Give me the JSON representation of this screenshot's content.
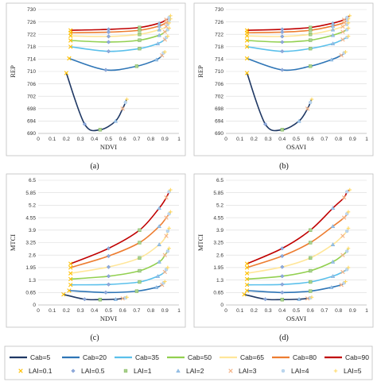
{
  "figure": {
    "panel_labels": [
      "(a)",
      "(b)",
      "(c)",
      "(d)"
    ]
  },
  "legend": {
    "lines": [
      {
        "label": "Cab=5",
        "color": "#1f3864"
      },
      {
        "label": "Cab=20",
        "color": "#2e75b6"
      },
      {
        "label": "Cab=35",
        "color": "#5bc0eb"
      },
      {
        "label": "Cab=50",
        "color": "#92d050"
      },
      {
        "label": "Cab=65",
        "color": "#ffe699"
      },
      {
        "label": "Cab=80",
        "color": "#ed7d31"
      },
      {
        "label": "Cab=90",
        "color": "#c00000"
      }
    ],
    "markers": [
      {
        "label": "LAI=0.1",
        "symbol": "x",
        "color": "#ffc000"
      },
      {
        "label": "LAI=0.5",
        "symbol": "diamond",
        "color": "#8faadc"
      },
      {
        "label": "LAI=1",
        "symbol": "square",
        "color": "#a9d18e"
      },
      {
        "label": "LAI=2",
        "symbol": "triangle",
        "color": "#9dc3e6"
      },
      {
        "label": "LAI=3",
        "symbol": "x",
        "color": "#f4b183"
      },
      {
        "label": "LAI=4",
        "symbol": "circle",
        "color": "#bdd7ee"
      },
      {
        "label": "LAI=5",
        "symbol": "plus",
        "color": "#ffd966"
      }
    ]
  },
  "chart_data": [
    {
      "type": "line",
      "panel": "(a)",
      "xlabel": "NDVI",
      "ylabel": "REP",
      "xlim": [
        0,
        1
      ],
      "ylim": [
        690,
        730
      ],
      "xticks": [
        "0",
        "0.1",
        "0.2",
        "0.3",
        "0.4",
        "0.5",
        "0.6",
        "0.7",
        "0.8",
        "0.9",
        "1"
      ],
      "yticks": [
        "690",
        "694",
        "698",
        "702",
        "706",
        "710",
        "714",
        "718",
        "722",
        "726",
        "730"
      ],
      "grid": true,
      "lai_levels": [
        0.1,
        0.5,
        1,
        2,
        3,
        4,
        5
      ],
      "series": [
        {
          "name": "Cab=5",
          "x": [
            0.2,
            0.33,
            0.44,
            0.55,
            0.6,
            0.62,
            0.63
          ],
          "y": [
            709.5,
            693,
            691.2,
            694,
            698,
            700,
            701
          ]
        },
        {
          "name": "Cab=20",
          "x": [
            0.22,
            0.48,
            0.7,
            0.84,
            0.88,
            0.89,
            0.9
          ],
          "y": [
            714.2,
            710.5,
            711.7,
            713.8,
            715.2,
            716,
            716.3
          ]
        },
        {
          "name": "Cab=35",
          "x": [
            0.23,
            0.5,
            0.72,
            0.85,
            0.9,
            0.91,
            0.92
          ],
          "y": [
            718,
            716.5,
            717.4,
            719,
            720.3,
            721,
            721.4
          ]
        },
        {
          "name": "Cab=50",
          "x": [
            0.23,
            0.5,
            0.72,
            0.86,
            0.9,
            0.92,
            0.93
          ],
          "y": [
            720,
            719.5,
            720.1,
            721.7,
            722.8,
            723.5,
            724
          ]
        },
        {
          "name": "Cab=65",
          "x": [
            0.23,
            0.5,
            0.72,
            0.86,
            0.91,
            0.92,
            0.93
          ],
          "y": [
            721.5,
            721.3,
            722,
            723.5,
            724.5,
            725.2,
            725.7
          ]
        },
        {
          "name": "Cab=80",
          "x": [
            0.23,
            0.5,
            0.72,
            0.86,
            0.91,
            0.93,
            0.94
          ],
          "y": [
            722.5,
            722.7,
            723.3,
            724.7,
            725.8,
            726.5,
            727
          ]
        },
        {
          "name": "Cab=90",
          "x": [
            0.23,
            0.5,
            0.72,
            0.86,
            0.91,
            0.93,
            0.94
          ],
          "y": [
            723.3,
            723.6,
            724.2,
            725.6,
            726.7,
            727.4,
            728
          ]
        }
      ]
    },
    {
      "type": "line",
      "panel": "(b)",
      "xlabel": "OSAVI",
      "ylabel": "REP",
      "xlim": [
        0,
        1
      ],
      "ylim": [
        690,
        730
      ],
      "xticks": [
        "0",
        "0.1",
        "0.2",
        "0.3",
        "0.4",
        "0.5",
        "0.6",
        "0.7",
        "0.8",
        "0.9",
        "1"
      ],
      "yticks": [
        "690",
        "694",
        "698",
        "702",
        "706",
        "710",
        "714",
        "718",
        "722",
        "726",
        "730"
      ],
      "grid": true,
      "lai_levels": [
        0.1,
        0.5,
        1,
        2,
        3,
        4,
        5
      ],
      "series": [
        {
          "name": "Cab=5",
          "x": [
            0.15,
            0.28,
            0.4,
            0.52,
            0.58,
            0.6,
            0.61
          ],
          "y": [
            709.5,
            693,
            691.2,
            694,
            698,
            700,
            701
          ]
        },
        {
          "name": "Cab=20",
          "x": [
            0.15,
            0.4,
            0.6,
            0.75,
            0.82,
            0.84,
            0.85
          ],
          "y": [
            714.2,
            710.5,
            711.7,
            713.8,
            715.2,
            716,
            716.3
          ]
        },
        {
          "name": "Cab=35",
          "x": [
            0.15,
            0.4,
            0.6,
            0.76,
            0.83,
            0.86,
            0.87
          ],
          "y": [
            718,
            716.5,
            717.4,
            719,
            720.3,
            721,
            721.4
          ]
        },
        {
          "name": "Cab=50",
          "x": [
            0.15,
            0.4,
            0.6,
            0.76,
            0.83,
            0.86,
            0.87
          ],
          "y": [
            720,
            719.5,
            720.1,
            721.7,
            722.8,
            723.5,
            724
          ]
        },
        {
          "name": "Cab=65",
          "x": [
            0.15,
            0.4,
            0.6,
            0.76,
            0.83,
            0.86,
            0.87
          ],
          "y": [
            721.5,
            721.3,
            722,
            723.5,
            724.5,
            725.2,
            725.7
          ]
        },
        {
          "name": "Cab=80",
          "x": [
            0.15,
            0.4,
            0.6,
            0.76,
            0.84,
            0.86,
            0.87
          ],
          "y": [
            722.5,
            722.7,
            723.3,
            724.7,
            725.8,
            726.5,
            727
          ]
        },
        {
          "name": "Cab=90",
          "x": [
            0.15,
            0.4,
            0.6,
            0.76,
            0.84,
            0.86,
            0.88
          ],
          "y": [
            723.3,
            723.6,
            724.2,
            725.6,
            726.7,
            727.4,
            728
          ]
        }
      ]
    },
    {
      "type": "line",
      "panel": "(c)",
      "xlabel": "NDVI",
      "ylabel": "MTCI",
      "xlim": [
        0,
        1
      ],
      "ylim": [
        0,
        6.5
      ],
      "xticks": [
        "0",
        "0.1",
        "0.2",
        "0.3",
        "0.4",
        "0.5",
        "0.6",
        "0.7",
        "0.8",
        "0.9",
        "1"
      ],
      "yticks": [
        "0",
        "0.65",
        "1.3",
        "1.95",
        "2.6",
        "3.25",
        "3.9",
        "4.55",
        "5.2",
        "5.85",
        "6.5"
      ],
      "grid": true,
      "lai_levels": [
        0.1,
        0.5,
        1,
        2,
        3,
        4,
        5
      ],
      "series": [
        {
          "name": "Cab=5",
          "x": [
            0.18,
            0.33,
            0.44,
            0.55,
            0.6,
            0.62,
            0.63
          ],
          "y": [
            0.55,
            0.3,
            0.28,
            0.3,
            0.34,
            0.37,
            0.4
          ]
        },
        {
          "name": "Cab=20",
          "x": [
            0.22,
            0.48,
            0.7,
            0.84,
            0.88,
            0.89,
            0.9
          ],
          "y": [
            0.75,
            0.65,
            0.72,
            0.92,
            1.05,
            1.15,
            1.22
          ]
        },
        {
          "name": "Cab=35",
          "x": [
            0.23,
            0.5,
            0.72,
            0.85,
            0.9,
            0.91,
            0.92
          ],
          "y": [
            1.05,
            1.07,
            1.2,
            1.5,
            1.72,
            1.85,
            1.95
          ]
        },
        {
          "name": "Cab=50",
          "x": [
            0.23,
            0.5,
            0.72,
            0.86,
            0.9,
            0.92,
            0.93
          ],
          "y": [
            1.35,
            1.5,
            1.78,
            2.25,
            2.6,
            2.8,
            2.95
          ]
        },
        {
          "name": "Cab=65",
          "x": [
            0.23,
            0.5,
            0.72,
            0.86,
            0.91,
            0.92,
            0.93
          ],
          "y": [
            1.65,
            1.98,
            2.45,
            3.15,
            3.6,
            3.85,
            4.0
          ]
        },
        {
          "name": "Cab=80",
          "x": [
            0.23,
            0.5,
            0.72,
            0.86,
            0.91,
            0.93,
            0.94
          ],
          "y": [
            1.95,
            2.55,
            3.25,
            4.1,
            4.55,
            4.75,
            4.85
          ]
        },
        {
          "name": "Cab=90",
          "x": [
            0.23,
            0.5,
            0.72,
            0.86,
            0.91,
            0.93,
            0.94
          ],
          "y": [
            2.15,
            2.95,
            3.9,
            5.05,
            5.6,
            5.9,
            6.0
          ]
        }
      ]
    },
    {
      "type": "line",
      "panel": "(d)",
      "xlabel": "OSAVI",
      "ylabel": "MTCI",
      "xlim": [
        0,
        1
      ],
      "ylim": [
        0,
        6.5
      ],
      "xticks": [
        "0",
        "0.1",
        "0.2",
        "0.3",
        "0.4",
        "0.5",
        "0.6",
        "0.7",
        "0.8",
        "0.9",
        "1"
      ],
      "yticks": [
        "0",
        "0.65",
        "1.3",
        "1.95",
        "2.6",
        "3.25",
        "3.9",
        "4.55",
        "5.2",
        "5.85",
        "6.5"
      ],
      "grid": true,
      "lai_levels": [
        0.1,
        0.5,
        1,
        2,
        3,
        4,
        5
      ],
      "series": [
        {
          "name": "Cab=5",
          "x": [
            0.13,
            0.28,
            0.4,
            0.52,
            0.58,
            0.6,
            0.61
          ],
          "y": [
            0.55,
            0.3,
            0.28,
            0.3,
            0.34,
            0.37,
            0.4
          ]
        },
        {
          "name": "Cab=20",
          "x": [
            0.15,
            0.4,
            0.6,
            0.75,
            0.82,
            0.84,
            0.85
          ],
          "y": [
            0.75,
            0.65,
            0.72,
            0.92,
            1.05,
            1.15,
            1.22
          ]
        },
        {
          "name": "Cab=35",
          "x": [
            0.15,
            0.4,
            0.6,
            0.76,
            0.83,
            0.86,
            0.87
          ],
          "y": [
            1.05,
            1.07,
            1.2,
            1.5,
            1.72,
            1.85,
            1.95
          ]
        },
        {
          "name": "Cab=50",
          "x": [
            0.15,
            0.4,
            0.6,
            0.76,
            0.83,
            0.86,
            0.87
          ],
          "y": [
            1.35,
            1.5,
            1.78,
            2.25,
            2.6,
            2.8,
            2.95
          ]
        },
        {
          "name": "Cab=65",
          "x": [
            0.15,
            0.4,
            0.6,
            0.76,
            0.83,
            0.86,
            0.87
          ],
          "y": [
            1.65,
            1.98,
            2.45,
            3.15,
            3.6,
            3.85,
            4.0
          ]
        },
        {
          "name": "Cab=80",
          "x": [
            0.15,
            0.4,
            0.6,
            0.76,
            0.84,
            0.86,
            0.87
          ],
          "y": [
            1.95,
            2.55,
            3.25,
            4.1,
            4.55,
            4.75,
            4.85
          ]
        },
        {
          "name": "Cab=90",
          "x": [
            0.15,
            0.4,
            0.6,
            0.76,
            0.84,
            0.86,
            0.88
          ],
          "y": [
            2.15,
            2.95,
            3.9,
            5.05,
            5.6,
            5.9,
            6.0
          ]
        }
      ]
    }
  ]
}
